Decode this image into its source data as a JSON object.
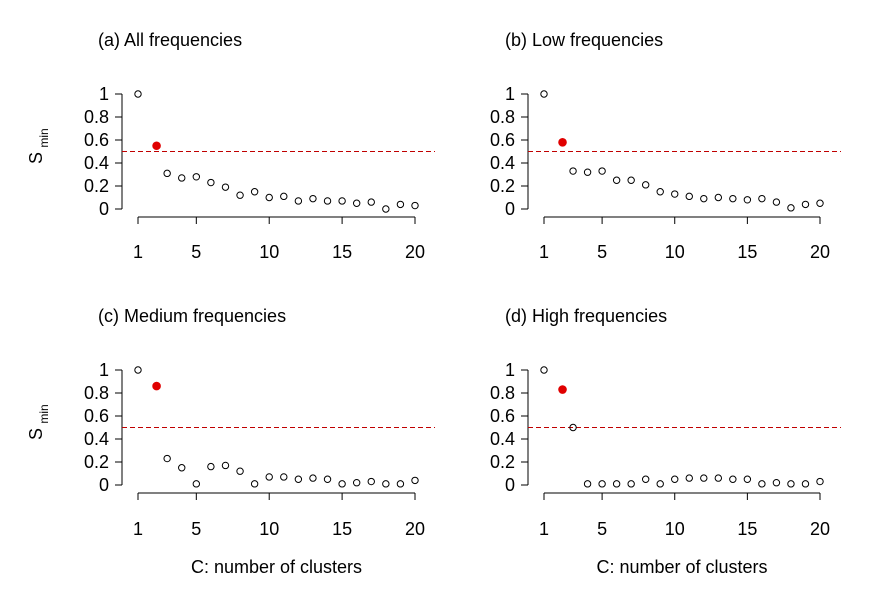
{
  "ylabel": {
    "main": "S",
    "sub": "min"
  },
  "chart_data": [
    {
      "type": "scatter",
      "title": "(a) All frequencies",
      "xlabel": "",
      "x": [
        1,
        2,
        3,
        4,
        5,
        6,
        7,
        8,
        9,
        10,
        11,
        12,
        13,
        14,
        15,
        16,
        17,
        18,
        19,
        20
      ],
      "y": [
        1.0,
        0.55,
        0.31,
        0.27,
        0.28,
        0.23,
        0.19,
        0.12,
        0.15,
        0.1,
        0.11,
        0.07,
        0.09,
        0.07,
        0.07,
        0.05,
        0.06,
        0.0,
        0.04,
        0.03
      ],
      "highlight_index": 1,
      "threshold": 0.5,
      "xticks": [
        "1",
        "5",
        "10",
        "15",
        "20"
      ],
      "yticks": [
        "0",
        "0.2",
        "0.4",
        "0.6",
        "0.8",
        "1"
      ],
      "xlim": [
        1,
        20
      ],
      "ylim": [
        0,
        1
      ],
      "colors": {
        "points": "#000000",
        "highlight": "#e00000",
        "threshold": "#c00000"
      }
    },
    {
      "type": "scatter",
      "title": "(b) Low frequencies",
      "xlabel": "",
      "x": [
        1,
        2,
        3,
        4,
        5,
        6,
        7,
        8,
        9,
        10,
        11,
        12,
        13,
        14,
        15,
        16,
        17,
        18,
        19,
        20
      ],
      "y": [
        1.0,
        0.58,
        0.33,
        0.32,
        0.33,
        0.25,
        0.25,
        0.21,
        0.15,
        0.13,
        0.11,
        0.09,
        0.1,
        0.09,
        0.08,
        0.09,
        0.06,
        0.01,
        0.04,
        0.05
      ],
      "highlight_index": 1,
      "threshold": 0.5,
      "xticks": [
        "1",
        "5",
        "10",
        "15",
        "20"
      ],
      "yticks": [
        "0",
        "0.2",
        "0.4",
        "0.6",
        "0.8",
        "1"
      ],
      "xlim": [
        1,
        20
      ],
      "ylim": [
        0,
        1
      ],
      "colors": {
        "points": "#000000",
        "highlight": "#e00000",
        "threshold": "#c00000"
      }
    },
    {
      "type": "scatter",
      "title": "(c) Medium frequencies",
      "xlabel": "C: number of clusters",
      "x": [
        1,
        2,
        3,
        4,
        5,
        6,
        7,
        8,
        9,
        10,
        11,
        12,
        13,
        14,
        15,
        16,
        17,
        18,
        19,
        20
      ],
      "y": [
        1.0,
        0.86,
        0.23,
        0.15,
        0.01,
        0.16,
        0.17,
        0.12,
        0.01,
        0.07,
        0.07,
        0.05,
        0.06,
        0.05,
        0.01,
        0.02,
        0.03,
        0.01,
        0.01,
        0.04
      ],
      "highlight_index": 1,
      "threshold": 0.5,
      "xticks": [
        "1",
        "5",
        "10",
        "15",
        "20"
      ],
      "yticks": [
        "0",
        "0.2",
        "0.4",
        "0.6",
        "0.8",
        "1"
      ],
      "xlim": [
        1,
        20
      ],
      "ylim": [
        0,
        1
      ],
      "colors": {
        "points": "#000000",
        "highlight": "#e00000",
        "threshold": "#c00000"
      }
    },
    {
      "type": "scatter",
      "title": "(d) High frequencies",
      "xlabel": "C: number of clusters",
      "x": [
        1,
        2,
        3,
        4,
        5,
        6,
        7,
        8,
        9,
        10,
        11,
        12,
        13,
        14,
        15,
        16,
        17,
        18,
        19,
        20
      ],
      "y": [
        1.0,
        0.83,
        0.5,
        0.01,
        0.01,
        0.01,
        0.01,
        0.05,
        0.01,
        0.05,
        0.06,
        0.06,
        0.06,
        0.05,
        0.05,
        0.01,
        0.02,
        0.01,
        0.01,
        0.03
      ],
      "highlight_index": 1,
      "threshold": 0.5,
      "xticks": [
        "1",
        "5",
        "10",
        "15",
        "20"
      ],
      "yticks": [
        "0",
        "0.2",
        "0.4",
        "0.6",
        "0.8",
        "1"
      ],
      "xlim": [
        1,
        20
      ],
      "ylim": [
        0,
        1
      ],
      "colors": {
        "points": "#000000",
        "highlight": "#e00000",
        "threshold": "#c00000"
      }
    }
  ]
}
